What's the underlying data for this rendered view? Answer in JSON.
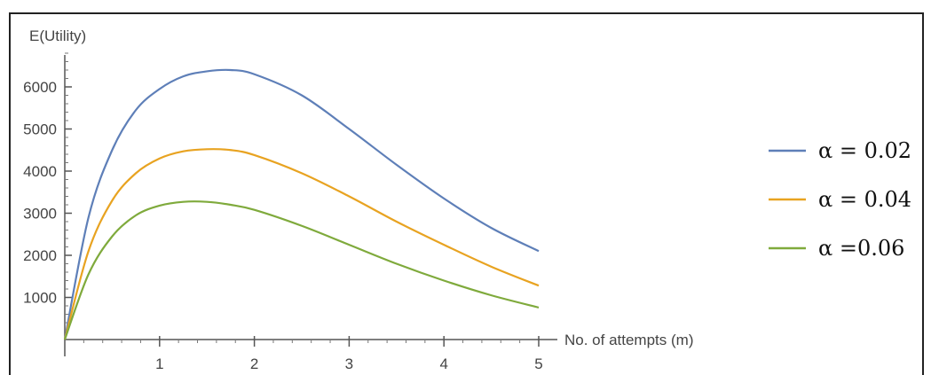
{
  "chart_data": {
    "type": "line",
    "title": "",
    "xlabel": "No. of attempts (m)",
    "ylabel": "E(Utility)",
    "xlim": [
      0,
      5.1
    ],
    "ylim": [
      0,
      7000
    ],
    "x_ticks": [
      1,
      2,
      3,
      4,
      5
    ],
    "y_ticks": [
      1000,
      2000,
      3000,
      4000,
      5000,
      6000
    ],
    "grid": false,
    "legend_position": "right",
    "series": [
      {
        "name": "α = 0.02",
        "color": "#5e7fb8",
        "x": [
          0,
          0.25,
          0.5,
          0.75,
          1.0,
          1.25,
          1.5,
          1.75,
          2.0,
          2.5,
          3.0,
          3.5,
          4.0,
          4.5,
          5.0
        ],
        "values": [
          0,
          2900,
          4500,
          5450,
          5950,
          6250,
          6370,
          6400,
          6300,
          5800,
          5000,
          4150,
          3350,
          2650,
          2100
        ]
      },
      {
        "name": "α = 0.04",
        "color": "#e8a321",
        "x": [
          0,
          0.25,
          0.5,
          0.75,
          1.0,
          1.25,
          1.5,
          1.75,
          2.0,
          2.5,
          3.0,
          3.5,
          4.0,
          4.5,
          5.0
        ],
        "values": [
          0,
          2100,
          3300,
          3950,
          4300,
          4470,
          4520,
          4500,
          4380,
          3950,
          3400,
          2800,
          2250,
          1730,
          1280
        ]
      },
      {
        "name": "α =0.06",
        "color": "#7faa3c",
        "x": [
          0,
          0.25,
          0.5,
          0.75,
          1.0,
          1.25,
          1.5,
          1.75,
          2.0,
          2.5,
          3.0,
          3.5,
          4.0,
          4.5,
          5.0
        ],
        "values": [
          0,
          1550,
          2450,
          2950,
          3180,
          3270,
          3270,
          3200,
          3080,
          2700,
          2250,
          1800,
          1400,
          1050,
          760
        ]
      }
    ]
  }
}
